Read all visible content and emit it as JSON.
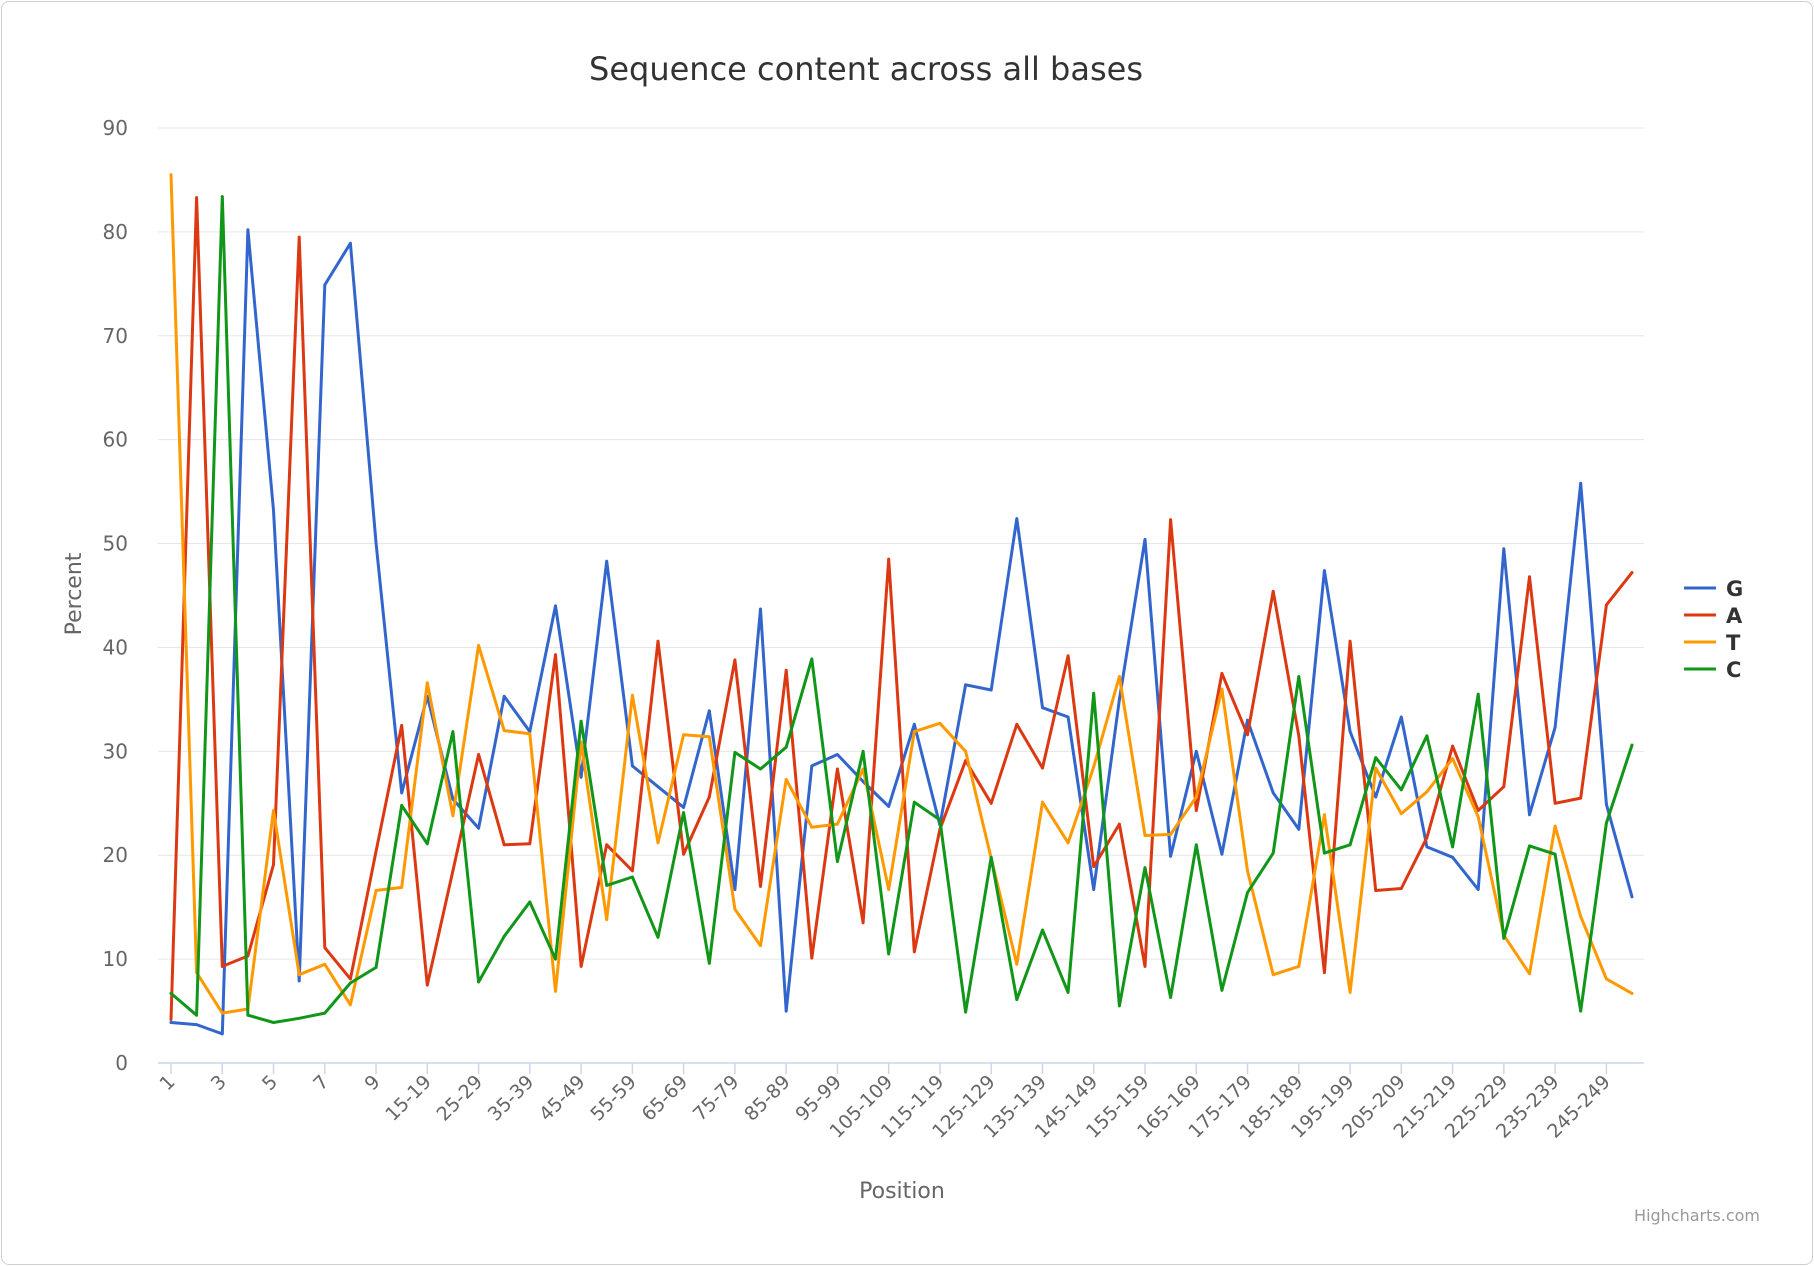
{
  "chart_data": {
    "type": "line",
    "title": "Sequence content across all bases",
    "xlabel": "Position",
    "ylabel": "Percent",
    "ylim": [
      0,
      90
    ],
    "y_ticks": [
      0,
      10,
      20,
      30,
      40,
      50,
      60,
      70,
      80,
      90
    ],
    "x_tick_labels": [
      "1",
      "3",
      "5",
      "7",
      "9",
      "15-19",
      "25-29",
      "35-39",
      "45-49",
      "55-59",
      "65-69",
      "75-79",
      "85-89",
      "95-99",
      "105-109",
      "115-119",
      "125-129",
      "135-139",
      "145-149",
      "155-159",
      "165-169",
      "175-179",
      "185-189",
      "195-199",
      "205-209",
      "215-219",
      "225-229",
      "235-239",
      "245-249"
    ],
    "x_label_step": 2,
    "grid": true,
    "legend_position": "right",
    "series": [
      {
        "name": "G",
        "color": "#3366cc",
        "values": [
          3.9,
          3.7,
          2.8,
          80.2,
          53.2,
          7.9,
          74.9,
          78.9,
          50.0,
          26.0,
          35.3,
          25.4,
          22.6,
          35.3,
          31.9,
          44.0,
          27.5,
          48.3,
          28.6,
          26.6,
          24.6,
          33.9,
          16.7,
          43.7,
          5.0,
          28.6,
          29.7,
          27.1,
          24.7,
          32.6,
          22.9,
          36.4,
          35.9,
          52.4,
          34.2,
          33.3,
          16.7,
          35.0,
          50.4,
          19.9,
          30.0,
          20.1,
          33.0,
          26.0,
          22.5,
          47.4,
          31.9,
          25.6,
          33.3,
          20.8,
          19.8,
          16.7,
          49.5,
          23.9,
          32.3,
          55.8,
          24.9,
          16.0
        ]
      },
      {
        "name": "A",
        "color": "#dc3912",
        "values": [
          4.2,
          83.3,
          9.3,
          10.3,
          19.1,
          79.5,
          11.1,
          8.1,
          20.4,
          32.5,
          7.5,
          18.5,
          29.7,
          21.0,
          21.1,
          39.3,
          9.3,
          21.0,
          18.5,
          40.6,
          20.1,
          25.6,
          38.8,
          17.0,
          37.8,
          10.1,
          28.3,
          13.5,
          48.5,
          10.7,
          22.5,
          29.1,
          25.0,
          32.6,
          28.4,
          39.2,
          18.9,
          23.0,
          9.3,
          52.3,
          24.3,
          37.5,
          31.6,
          45.4,
          31.5,
          8.7,
          40.6,
          16.6,
          16.8,
          21.7,
          30.5,
          24.3,
          26.6,
          46.8,
          25.0,
          25.5,
          44.1,
          47.2
        ]
      },
      {
        "name": "T",
        "color": "#ff9900",
        "values": [
          85.5,
          8.7,
          4.8,
          5.2,
          24.3,
          8.5,
          9.5,
          5.6,
          16.6,
          16.9,
          36.6,
          23.8,
          40.2,
          32.0,
          31.7,
          6.9,
          30.9,
          13.8,
          35.4,
          21.2,
          31.6,
          31.4,
          14.8,
          11.3,
          27.3,
          22.7,
          23.0,
          28.3,
          16.7,
          31.9,
          32.7,
          30.0,
          19.7,
          9.5,
          25.1,
          21.2,
          28.5,
          37.2,
          21.9,
          22.0,
          25.6,
          36.0,
          18.5,
          8.5,
          9.3,
          23.9,
          6.8,
          28.4,
          24.0,
          26.1,
          29.3,
          23.7,
          12.3,
          8.6,
          22.8,
          14.1,
          8.1,
          6.7
        ]
      },
      {
        "name": "C",
        "color": "#109618",
        "values": [
          6.7,
          4.6,
          83.4,
          4.6,
          3.9,
          4.3,
          4.8,
          7.7,
          9.2,
          24.8,
          21.1,
          31.9,
          7.8,
          12.2,
          15.5,
          10.0,
          32.9,
          17.1,
          17.9,
          12.1,
          24.1,
          9.6,
          29.9,
          28.3,
          30.4,
          38.9,
          19.4,
          30.0,
          10.5,
          25.1,
          23.4,
          4.9,
          19.8,
          6.1,
          12.8,
          6.8,
          35.6,
          5.5,
          18.8,
          6.3,
          21.0,
          7.0,
          16.4,
          20.2,
          37.2,
          20.2,
          21.0,
          29.4,
          26.3,
          31.5,
          20.8,
          35.5,
          12.0,
          20.9,
          20.1,
          5.0,
          23.1,
          30.6
        ]
      }
    ]
  },
  "credits": "Highcharts.com"
}
